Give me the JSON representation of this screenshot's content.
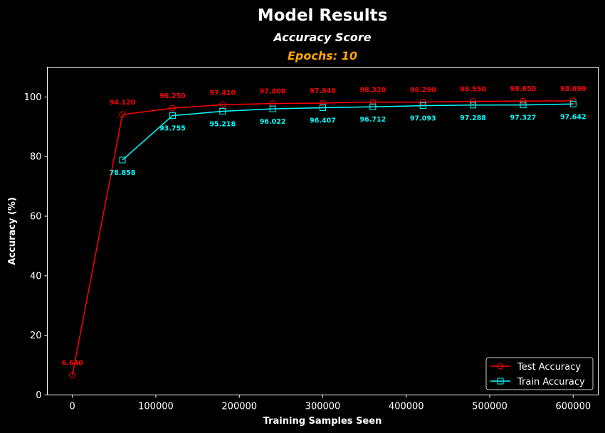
{
  "chart_data": {
    "type": "line",
    "title": "Model Results",
    "subtitle": "Accuracy Score",
    "subtitle2": "Epochs: 10",
    "xlabel": "Training Samples Seen",
    "ylabel": "Accuracy (%)",
    "xlim": [
      -30000,
      630000
    ],
    "ylim": [
      0,
      110
    ],
    "xticks": [
      0,
      100000,
      200000,
      300000,
      400000,
      500000,
      600000
    ],
    "xtick_labels": [
      "0",
      "100000",
      "200000",
      "300000",
      "400000",
      "500000",
      "600000"
    ],
    "yticks": [
      0,
      20,
      40,
      60,
      80,
      100
    ],
    "ytick_labels": [
      "0",
      "20",
      "40",
      "60",
      "80",
      "100"
    ],
    "grid": false,
    "legend_position": "bottom-right",
    "series": [
      {
        "name": "Test Accuracy",
        "color": "#ff0000",
        "marker": "circle",
        "label_position": "above",
        "x": [
          0,
          60000,
          120000,
          180000,
          240000,
          300000,
          360000,
          420000,
          480000,
          540000,
          600000
        ],
        "y": [
          6.64,
          94.12,
          96.25,
          97.41,
          97.8,
          97.94,
          98.32,
          98.29,
          98.55,
          98.65,
          98.69
        ],
        "labels": [
          "6.640",
          "94.120",
          "96.250",
          "97.410",
          "97.800",
          "97.940",
          "98.320",
          "98.290",
          "98.550",
          "98.650",
          "98.690"
        ]
      },
      {
        "name": "Train Accuracy",
        "color": "#00ffff",
        "marker": "square",
        "label_position": "below",
        "x": [
          60000,
          120000,
          180000,
          240000,
          300000,
          360000,
          420000,
          480000,
          540000,
          600000
        ],
        "y": [
          78.858,
          93.755,
          95.218,
          96.022,
          96.407,
          96.712,
          97.093,
          97.288,
          97.327,
          97.642
        ],
        "labels": [
          "78.858",
          "93.755",
          "95.218",
          "96.022",
          "96.407",
          "96.712",
          "97.093",
          "97.288",
          "97.327",
          "97.642"
        ]
      }
    ]
  },
  "colors": {
    "background": "#000000",
    "axes": "#ffffff",
    "subtitle2": "#ffa500",
    "legend_bg": "#000000",
    "legend_border": "#cccccc"
  }
}
